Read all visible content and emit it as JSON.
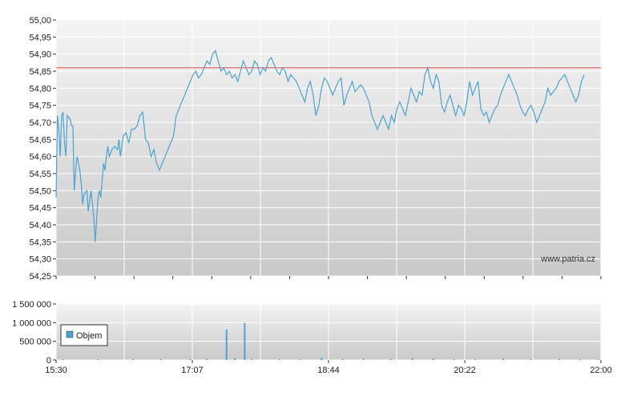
{
  "watermark": "www.patria.cz",
  "colors": {
    "price_line": "#4aa3d1",
    "reference_line": "#e05050",
    "volume_bar": "#4aa3d1",
    "grid": "#ffffff",
    "axis": "#333333",
    "plot_bg_top": "#f4f4f4",
    "plot_bg_bottom": "#c9c9c9"
  },
  "chart_data": [
    {
      "type": "line",
      "name": "price",
      "title": "",
      "xlabel": "",
      "ylabel": "",
      "xlim": [
        "15:30",
        "22:00"
      ],
      "ylim": [
        54.25,
        55.0
      ],
      "y_ticks": [
        "55,00",
        "54,95",
        "54,90",
        "54,85",
        "54,80",
        "54,75",
        "54,70",
        "54,65",
        "54,60",
        "54,55",
        "54,50",
        "54,45",
        "54,40",
        "54,35",
        "54,30",
        "54,25"
      ],
      "grid": true,
      "reference_line": {
        "y": 54.86
      },
      "x_minutes_from_open": [
        0,
        1,
        2,
        3,
        4,
        5,
        6,
        7,
        8,
        10,
        11,
        12,
        13,
        14,
        15,
        16,
        17,
        18,
        19,
        20,
        22,
        23,
        25,
        27,
        28,
        30,
        31,
        32,
        33,
        34,
        35,
        36,
        37,
        38,
        40,
        42,
        44,
        45,
        46,
        48,
        50,
        52,
        54,
        56,
        58,
        60,
        62,
        64,
        66,
        68,
        70,
        72,
        74,
        76,
        78,
        80,
        82,
        84,
        86,
        88,
        90,
        92,
        94,
        96,
        98,
        100,
        102,
        104,
        106,
        108,
        110,
        112,
        114,
        116,
        118,
        120,
        122,
        124,
        126,
        128,
        130,
        132,
        134,
        136,
        138,
        140,
        142,
        144,
        146,
        148,
        150,
        152,
        154,
        156,
        158,
        160,
        162,
        164,
        166,
        168,
        170,
        172,
        174,
        176,
        178,
        180,
        182,
        184,
        186,
        188,
        190,
        192,
        194,
        196,
        198,
        200,
        202,
        204,
        206,
        208,
        210,
        212,
        214,
        216,
        218,
        220,
        222,
        224,
        226,
        228,
        230,
        232,
        234,
        236,
        238,
        240,
        242,
        244,
        246,
        248,
        250,
        252,
        254,
        256,
        258,
        260,
        262,
        264,
        266,
        268,
        270,
        272,
        274,
        276,
        278,
        280,
        282,
        284,
        286,
        288,
        290,
        292,
        294,
        296,
        298,
        300,
        302,
        304,
        306,
        308,
        310,
        312,
        314,
        316,
        318,
        320,
        322,
        324,
        326,
        328,
        330,
        332,
        334,
        336,
        338,
        340,
        342,
        344,
        346,
        348,
        350,
        352,
        354,
        356,
        358,
        360,
        362,
        364,
        366,
        368,
        370,
        372,
        374,
        376,
        378,
        380,
        382,
        384,
        386,
        388,
        390
      ],
      "y": [
        54.48,
        54.72,
        54.68,
        54.6,
        54.72,
        54.73,
        54.64,
        54.6,
        54.72,
        54.71,
        54.69,
        54.69,
        54.5,
        54.56,
        54.6,
        54.58,
        54.56,
        54.52,
        54.46,
        54.49,
        54.5,
        54.44,
        54.5,
        54.42,
        54.35,
        54.48,
        54.5,
        54.48,
        54.53,
        54.58,
        54.56,
        54.6,
        54.63,
        54.6,
        54.62,
        54.63,
        54.62,
        54.65,
        54.6,
        54.66,
        54.67,
        54.64,
        54.68,
        54.68,
        54.69,
        54.72,
        54.73,
        54.65,
        54.64,
        54.6,
        54.62,
        54.58,
        54.56,
        54.58,
        54.6,
        54.62,
        54.64,
        54.66,
        54.72,
        54.74,
        54.76,
        54.78,
        54.8,
        54.82,
        54.84,
        54.85,
        54.83,
        54.84,
        54.86,
        54.88,
        54.87,
        54.9,
        54.91,
        54.88,
        54.85,
        54.86,
        54.84,
        54.85,
        54.83,
        54.84,
        54.82,
        54.85,
        54.88,
        54.86,
        54.84,
        54.85,
        54.88,
        54.87,
        54.84,
        54.86,
        54.85,
        54.88,
        54.89,
        54.87,
        54.85,
        54.84,
        54.86,
        54.85,
        54.82,
        54.84,
        54.83,
        54.82,
        54.8,
        54.78,
        54.76,
        54.8,
        54.82,
        54.78,
        54.72,
        54.75,
        54.8,
        54.83,
        54.82,
        54.8,
        54.78,
        54.8,
        54.82,
        54.83,
        54.75,
        54.78,
        54.8,
        54.82,
        54.79,
        54.8,
        54.81,
        54.8,
        54.78,
        54.76,
        54.72,
        54.7,
        54.68,
        54.7,
        54.72,
        54.7,
        54.68,
        54.72,
        54.7,
        54.74,
        54.76,
        54.74,
        54.72,
        54.76,
        54.8,
        54.78,
        54.76,
        54.79,
        54.78,
        54.84,
        54.86,
        54.82,
        54.8,
        54.84,
        54.82,
        54.75,
        54.73,
        54.76,
        54.78,
        54.75,
        54.72,
        54.75,
        54.74,
        54.72,
        54.76,
        54.82,
        54.78,
        54.8,
        54.82,
        54.74,
        54.72,
        54.73,
        54.7,
        54.72,
        54.74,
        54.75,
        54.78,
        54.8,
        54.82,
        54.84,
        54.82,
        54.8,
        54.78,
        54.75,
        54.73,
        54.72,
        54.74,
        54.75,
        54.73,
        54.7,
        54.72,
        54.74,
        54.76,
        54.8,
        54.78,
        54.79,
        54.8,
        54.82,
        54.83,
        54.84,
        54.82,
        54.8,
        54.78,
        54.76,
        54.78,
        54.82,
        54.84
      ]
    },
    {
      "type": "bar",
      "name": "volume",
      "xlim": [
        "15:30",
        "22:00"
      ],
      "ylim": [
        0,
        1500000
      ],
      "y_ticks": [
        "1 500 000",
        "1 000 000",
        "500 000",
        "0"
      ],
      "x_ticks": [
        "15:30",
        "17:07",
        "18:44",
        "20:22",
        "22:00"
      ],
      "legend": [
        "Objem"
      ],
      "legend_position": "left",
      "grid": true,
      "x_minutes_from_open": [
        5,
        30,
        55,
        75,
        96,
        108,
        122,
        128,
        135,
        140,
        160,
        175,
        190,
        205,
        220,
        240,
        255,
        270,
        285,
        300,
        320,
        340,
        360,
        375,
        388
      ],
      "volume": [
        20000,
        15000,
        18000,
        22000,
        25000,
        30000,
        820000,
        40000,
        990000,
        20000,
        18000,
        15000,
        60000,
        25000,
        30000,
        20000,
        35000,
        40000,
        18000,
        15000,
        30000,
        20000,
        25000,
        20000,
        15000
      ]
    }
  ]
}
